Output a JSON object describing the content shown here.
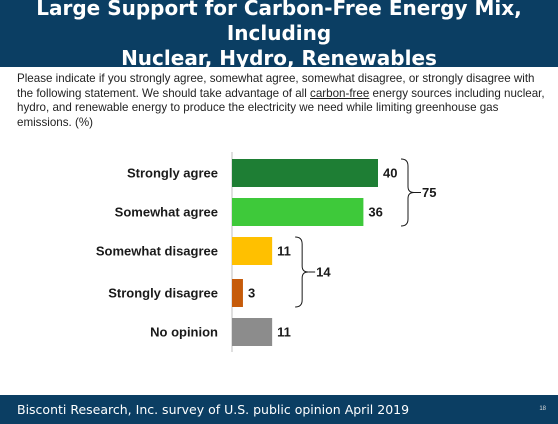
{
  "title": "Large Support for Carbon-Free Energy Mix, Including\nNuclear, Hydro, Renewables",
  "question": {
    "before": "Please indicate if you strongly agree, somewhat agree, somewhat disagree, or strongly disagree with the following statement.  We should take advantage of all ",
    "underlined": "carbon-free",
    "after": " energy sources including nuclear, hydro, and renewable energy to produce the electricity we need while limiting greenhouse gas emissions. (%)"
  },
  "footer": "Bisconti Research, Inc. survey of U.S. public opinion April 2019",
  "page_number": "18",
  "chart_data": {
    "type": "bar",
    "orientation": "horizontal",
    "categories": [
      "Strongly agree",
      "Somewhat agree",
      "Somewhat disagree",
      "Strongly disagree",
      "No opinion"
    ],
    "values": [
      40,
      36,
      11,
      3,
      11
    ],
    "colors": [
      "#1e7e34",
      "#3ec93a",
      "#ffc000",
      "#c65b0a",
      "#8c8c8c"
    ],
    "xlim": [
      0,
      40
    ],
    "groups": [
      {
        "label": "75",
        "from": 0,
        "to": 1
      },
      {
        "label": "14",
        "from": 2,
        "to": 3
      }
    ]
  }
}
